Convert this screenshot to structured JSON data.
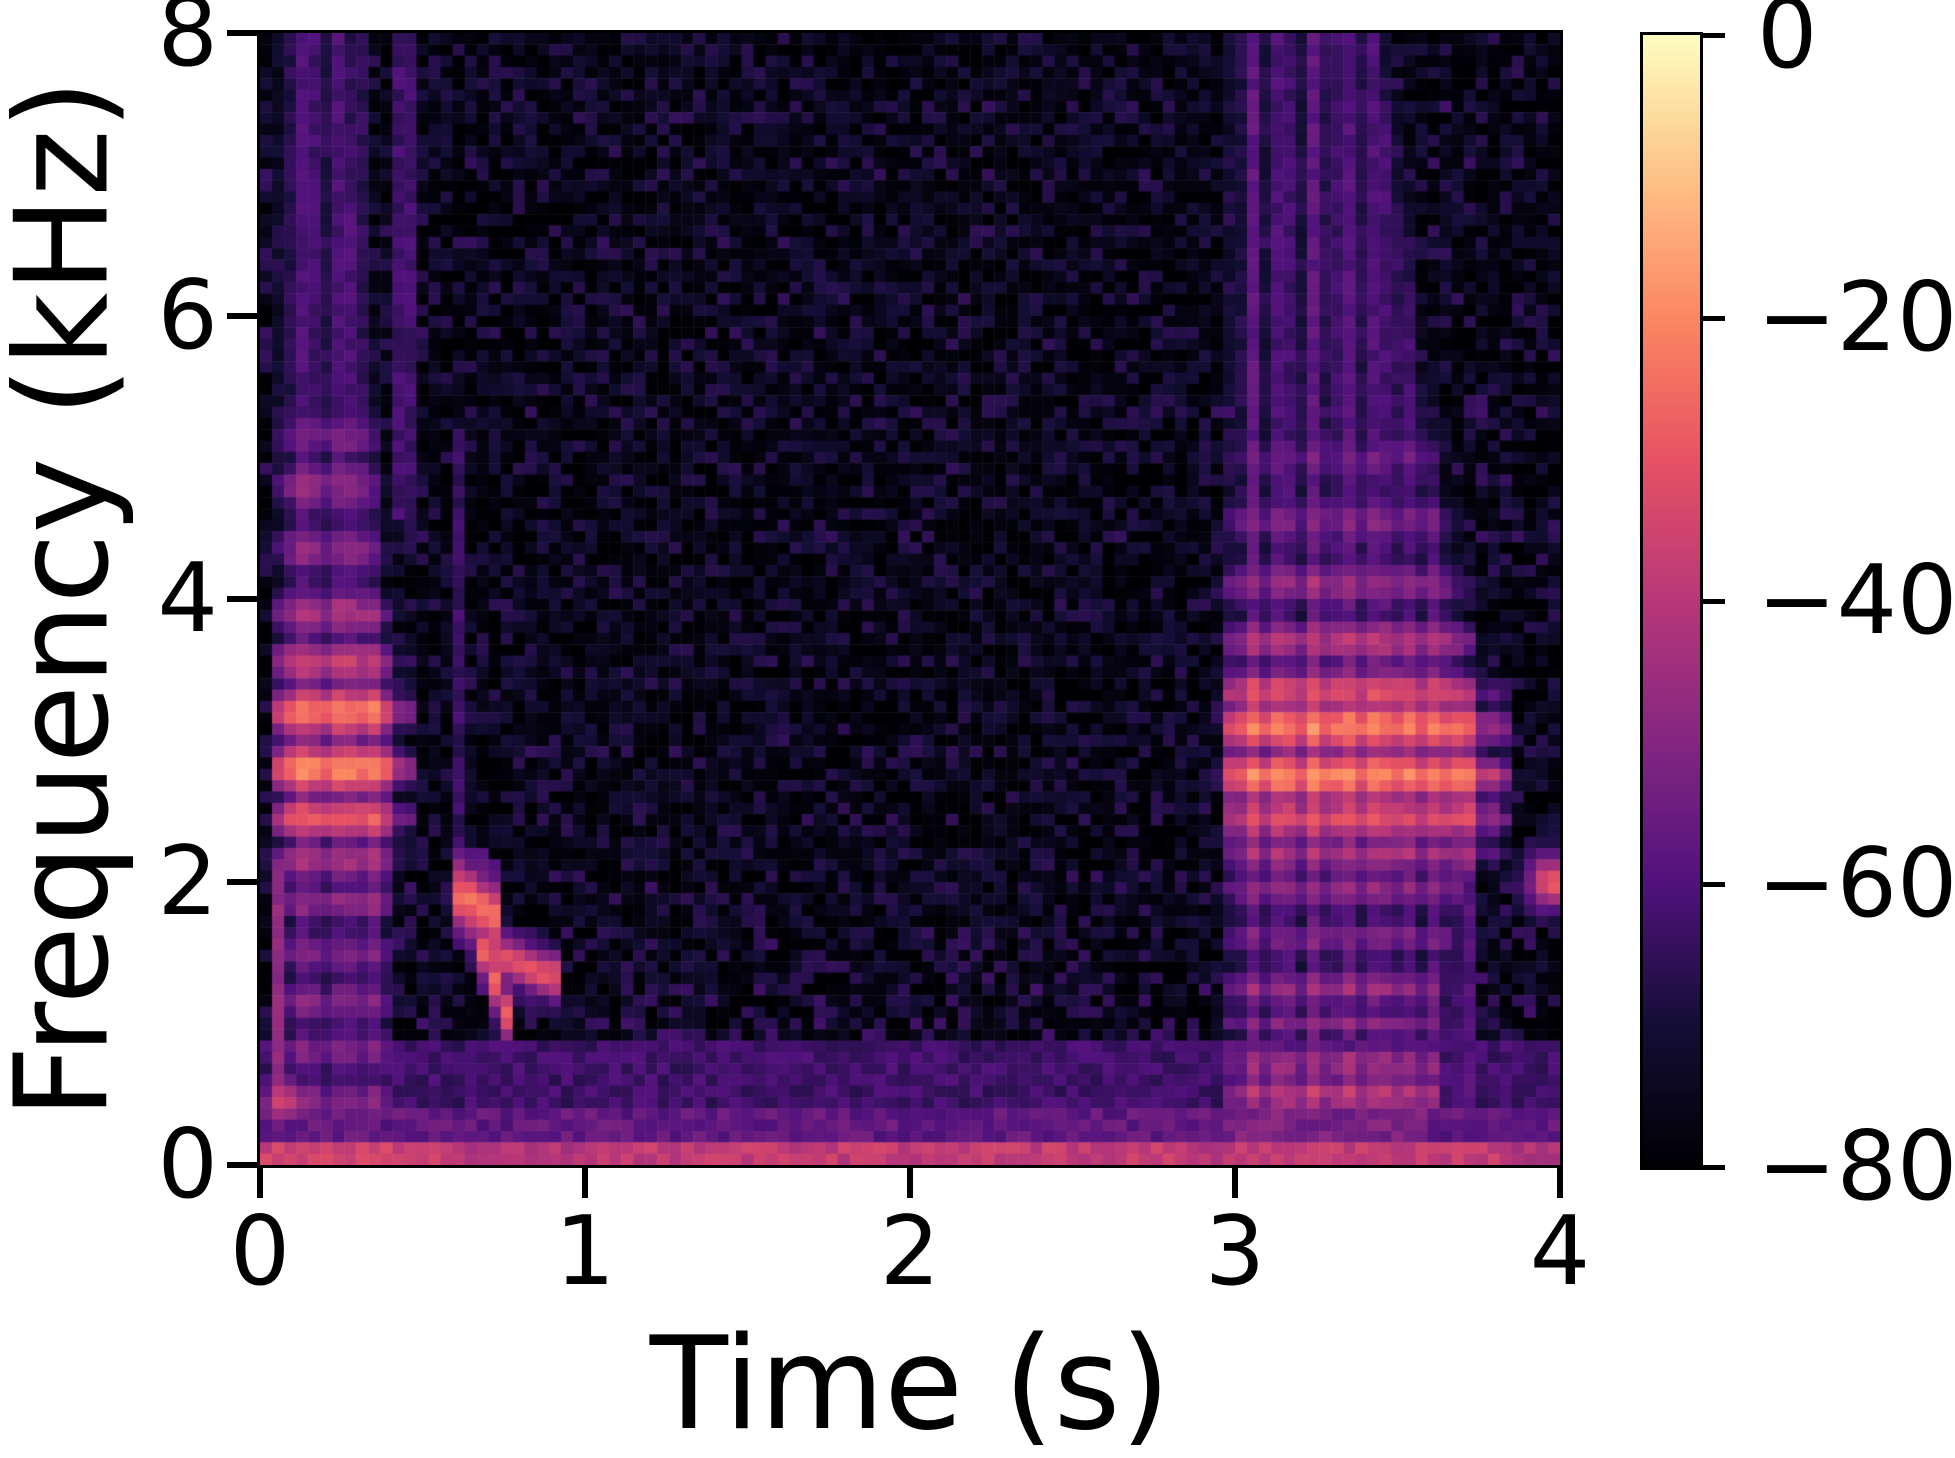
{
  "colors": {
    "axis": "#000000",
    "background": "#ffffff"
  },
  "chart_data": {
    "type": "heatmap",
    "subtype": "spectrogram",
    "title": "",
    "xlabel": "Time (s)",
    "ylabel": "Frequency (kHz)",
    "x_range": [
      0,
      4
    ],
    "y_range": [
      0,
      8
    ],
    "x_ticks": {
      "values": [
        0,
        1,
        2,
        3,
        4
      ],
      "labels": [
        "0",
        "1",
        "2",
        "3",
        "4"
      ]
    },
    "y_ticks": {
      "values": [
        0,
        2,
        4,
        6,
        8
      ],
      "labels": [
        "0",
        "2",
        "4",
        "6",
        "8"
      ]
    },
    "colorbar": {
      "range_db": [
        -80,
        0
      ],
      "tick_values": [
        0,
        -20,
        -40,
        -60,
        -80
      ],
      "tick_labels": [
        "0",
        "−20",
        "−40",
        "−60",
        "−80"
      ],
      "colormap": "magma",
      "colormap_stops": [
        "#000004",
        "#140e36",
        "#51127c",
        "#832681",
        "#b73779",
        "#e75263",
        "#fb8761",
        "#fec287",
        "#fcfdbf"
      ]
    },
    "grid": {
      "cols": 108,
      "rows": 100,
      "seed": 7
    },
    "background": {
      "base_db": -80,
      "base_jitter": 5,
      "speckle_prob": 0.16,
      "speckle_db": -73,
      "speckle_jitter": 13,
      "lowfreq_fmax": 2.4,
      "lowfreq_boost_db": 7,
      "time_windows": [
        {
          "t0": 0.0,
          "t1": 0.52,
          "amp": 2.5
        },
        {
          "t0": 2.9,
          "t1": 4.0,
          "amp": 2.5
        },
        {
          "t0": 2.76,
          "t1": 2.94,
          "amp": -3
        }
      ],
      "bottom_bands": [
        {
          "f1": 0.18,
          "db": -41,
          "jitter": 8,
          "profile": [
            {
              "t0": 0.0,
              "t1": 0.6,
              "amp": 5
            },
            {
              "t0": 1.05,
              "t1": 2.8,
              "amp": 3
            },
            {
              "t0": 2.95,
              "t1": 3.8,
              "amp": 3
            }
          ]
        },
        {
          "f1": 0.4,
          "db": -57,
          "jitter": 9,
          "profile": [
            {
              "t0": 2.95,
              "t1": 3.6,
              "amp": 5
            }
          ]
        },
        {
          "f1": 0.85,
          "db": -63,
          "jitter": 8,
          "profile": [
            {
              "t0": 2.95,
              "t1": 3.6,
              "amp": 4
            }
          ]
        }
      ]
    },
    "row_bands": [
      {
        "f": 7.45,
        "amp": 5,
        "w": 0.07
      },
      {
        "f": 7.05,
        "amp": 4,
        "w": 0.07
      },
      {
        "f": 6.55,
        "amp": 5,
        "w": 0.07
      },
      {
        "f": 6.1,
        "amp": 3,
        "w": 0.07
      },
      {
        "f": 5.85,
        "amp": 4,
        "w": 0.07
      },
      {
        "f": 5.35,
        "amp": 6,
        "w": 0.07
      },
      {
        "f": 4.9,
        "amp": 3,
        "w": 0.07
      },
      {
        "f": 4.45,
        "amp": 4,
        "w": 0.07
      },
      {
        "f": 3.95,
        "amp": 3,
        "w": 0.07
      },
      {
        "f": 3.5,
        "amp": 4,
        "w": 0.07
      },
      {
        "f": 2.95,
        "amp": 5,
        "w": 0.07
      },
      {
        "f": 2.5,
        "amp": 4,
        "w": 0.07
      },
      {
        "f": 2.0,
        "amp": 5,
        "w": 0.07
      },
      {
        "f": 1.6,
        "amp": 5,
        "w": 0.07
      },
      {
        "f": 1.25,
        "amp": 5,
        "w": 0.07
      },
      {
        "f": 0.95,
        "amp": 5,
        "w": 0.07
      },
      {
        "f": 0.6,
        "amp": 6,
        "w": 0.07
      }
    ],
    "events": [
      {
        "kind": "burst",
        "name": "call-syllable-1",
        "t0": 0.025,
        "t1": 0.47,
        "attack": 0.05,
        "release": 0.1,
        "tilt": 0.12,
        "striation_period": 0.115,
        "striation_phase": 1.4,
        "striation_depth": 6,
        "floor_db": -57,
        "floor_fmax": 5.45,
        "bands": [
          {
            "f": 0.45,
            "w": 0.18,
            "db": -45
          },
          {
            "f": 0.8,
            "w": 0.16,
            "db": -47
          },
          {
            "f": 1.15,
            "w": 0.16,
            "db": -46
          },
          {
            "f": 1.5,
            "w": 0.16,
            "db": -47
          },
          {
            "f": 1.85,
            "w": 0.15,
            "db": -44
          },
          {
            "f": 2.15,
            "w": 0.13,
            "db": -38
          },
          {
            "f": 2.45,
            "w": 0.12,
            "db": -24
          },
          {
            "f": 2.8,
            "w": 0.12,
            "db": -15
          },
          {
            "f": 3.2,
            "w": 0.13,
            "db": -18
          },
          {
            "f": 3.55,
            "w": 0.14,
            "db": -32
          },
          {
            "f": 3.9,
            "w": 0.16,
            "db": -38
          },
          {
            "f": 4.35,
            "w": 0.18,
            "db": -43
          },
          {
            "f": 4.8,
            "w": 0.2,
            "db": -44
          },
          {
            "f": 5.15,
            "w": 0.18,
            "db": -47
          }
        ]
      },
      {
        "kind": "vline",
        "name": "burst1-onset-column",
        "t0": 0.04,
        "t1": 0.09,
        "f0": 0.3,
        "f1": 2.15,
        "db": -48
      },
      {
        "kind": "blob",
        "name": "burst1-onset-lowspot",
        "t_c": 0.07,
        "f_c": 0.45,
        "t_w": 0.045,
        "f_w": 0.13,
        "peak_db": -33
      },
      {
        "kind": "vline",
        "name": "burst1-hf-streak-a",
        "t0": 0.22,
        "t1": 0.32,
        "f0": 5.4,
        "f1": 8.0,
        "db": -66
      },
      {
        "kind": "vline",
        "name": "burst1-hf-streak-b",
        "t0": 0.42,
        "t1": 0.48,
        "f0": 4.6,
        "f1": 8.0,
        "db": -63
      },
      {
        "kind": "vline",
        "name": "chirp-onset-click",
        "t0": 0.6,
        "t1": 0.64,
        "f0": 1.9,
        "f1": 5.2,
        "db": -64
      },
      {
        "kind": "trace",
        "name": "chirp-hold-2khz",
        "t0": 0.58,
        "t1": 0.73,
        "f_start": 1.95,
        "f_end": 1.75,
        "width": 0.15,
        "peak_db": -25
      },
      {
        "kind": "trace",
        "name": "chirp-down-sweep",
        "t0": 0.68,
        "t1": 0.78,
        "f_start": 1.55,
        "f_end": 0.95,
        "width": 0.13,
        "peak_db": -28
      },
      {
        "kind": "trace",
        "name": "chirp-flat-tail",
        "t0": 0.71,
        "t1": 0.94,
        "f_start": 1.5,
        "f_end": 1.3,
        "width": 0.11,
        "peak_db": -31
      },
      {
        "kind": "burst",
        "name": "call-syllable-2",
        "t0": 2.96,
        "t1": 3.85,
        "attack": 0.035,
        "release": 0.13,
        "tilt": 0.3,
        "striation_period": 0.095,
        "striation_phase": 1.6,
        "striation_depth": 9,
        "floor_db": -55,
        "floor_fmax": 5.35,
        "bands": [
          {
            "f": 0.5,
            "w": 0.12,
            "db": -34,
            "t1": 3.62
          },
          {
            "f": 0.72,
            "w": 0.1,
            "db": -38,
            "t1": 3.62
          },
          {
            "f": 1.0,
            "w": 0.12,
            "db": -44,
            "t1": 3.62
          },
          {
            "f": 1.25,
            "w": 0.12,
            "db": -40,
            "t1": 3.62
          },
          {
            "f": 1.6,
            "w": 0.14,
            "db": -45,
            "t1": 3.65
          },
          {
            "f": 1.95,
            "w": 0.14,
            "db": -42,
            "t1": 3.7
          },
          {
            "f": 2.2,
            "w": 0.12,
            "db": -36
          },
          {
            "f": 2.45,
            "w": 0.12,
            "db": -25
          },
          {
            "f": 2.75,
            "w": 0.12,
            "db": -14
          },
          {
            "f": 3.1,
            "w": 0.13,
            "db": -16
          },
          {
            "f": 3.35,
            "w": 0.12,
            "db": -26
          },
          {
            "f": 3.7,
            "w": 0.15,
            "db": -35
          },
          {
            "f": 4.1,
            "w": 0.17,
            "db": -41
          },
          {
            "f": 4.55,
            "w": 0.19,
            "db": -45
          },
          {
            "f": 5.0,
            "w": 0.2,
            "db": -49
          }
        ]
      },
      {
        "kind": "vline",
        "name": "burst2-click-a",
        "t0": 3.02,
        "t1": 3.07,
        "f0": 0,
        "f1": 8,
        "db": -58
      },
      {
        "kind": "vline",
        "name": "burst2-click-b",
        "t0": 3.32,
        "t1": 3.36,
        "f0": 0,
        "f1": 7.3,
        "db": -63
      },
      {
        "kind": "blob",
        "name": "edge-tone-2khz",
        "t_c": 3.97,
        "f_c": 2.0,
        "t_w": 0.05,
        "f_w": 0.13,
        "peak_db": -29
      }
    ]
  }
}
